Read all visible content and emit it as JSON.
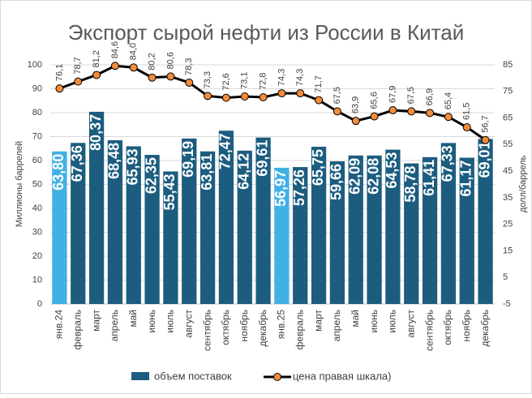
{
  "chart_data": {
    "type": "bar_line",
    "title": "Экспорт сырой нефти из России в Китай",
    "y_label": "Миллионы баррелей",
    "y2_label": "долл/баррель",
    "categories": [
      "янв.24",
      "февраль",
      "март",
      "апрель",
      "май",
      "июнь",
      "июль",
      "август",
      "сентябрь",
      "октябрь",
      "ноябрь",
      "декабрь",
      "янв.25",
      "февраль",
      "март",
      "апрель",
      "май",
      "июнь",
      "июль",
      "август",
      "сентябрь",
      "октябрь",
      "ноябрь",
      "декабрь"
    ],
    "ylim": [
      0,
      100
    ],
    "yticks": [
      0,
      10,
      20,
      30,
      40,
      50,
      60,
      70,
      80,
      90,
      100
    ],
    "y2lim": [
      -5,
      85
    ],
    "y2ticks": [
      -5,
      5,
      15,
      25,
      35,
      45,
      55,
      65,
      75,
      85
    ],
    "grid": true,
    "series": [
      {
        "name": "объем поставок",
        "type": "bar",
        "color": "#1c5d7f",
        "colors": [
          "#41b0e4",
          "#1c5d7f",
          "#1c5d7f",
          "#1c5d7f",
          "#1c5d7f",
          "#1c5d7f",
          "#1c5d7f",
          "#1c5d7f",
          "#1c5d7f",
          "#1c5d7f",
          "#1c5d7f",
          "#1c5d7f",
          "#41b0e4",
          "#1c5d7f",
          "#1c5d7f",
          "#1c5d7f",
          "#1c5d7f",
          "#1c5d7f",
          "#1c5d7f",
          "#1c5d7f",
          "#1c5d7f",
          "#1c5d7f",
          "#1c5d7f",
          "#1c5d7f"
        ],
        "values": [
          63.8,
          67.36,
          80.37,
          68.48,
          65.93,
          62.35,
          55.43,
          69.19,
          63.81,
          72.47,
          64.12,
          69.61,
          56.97,
          57.26,
          65.75,
          59.66,
          62.09,
          62.08,
          64.53,
          58.78,
          61.41,
          67.33,
          61.17,
          69.01
        ],
        "value_labels": [
          "63,80",
          "67,36",
          "80,37",
          "68,48",
          "65,93",
          "62,35",
          "55,43",
          "69,19",
          "63,81",
          "72,47",
          "64,12",
          "69,61",
          "56,97",
          "57,26",
          "65,75",
          "59,66",
          "62,09",
          "62,08",
          "64,53",
          "58,78",
          "61,41",
          "67,33",
          "61,17",
          "69,01"
        ]
      },
      {
        "name": "цена правая шкала)",
        "type": "line",
        "axis": "y2",
        "color": "#000000",
        "marker_color": "#f28c3a",
        "values": [
          76.1,
          78.7,
          81.2,
          84.6,
          84.0,
          80.2,
          80.6,
          78.3,
          73.3,
          72.6,
          73.1,
          72.8,
          74.3,
          74.3,
          71.7,
          67.5,
          63.9,
          65.6,
          67.9,
          67.5,
          66.9,
          65.4,
          61.5,
          56.7
        ],
        "value_labels": [
          "76,1",
          "78,7",
          "81,2",
          "84,6",
          "84,0",
          "80,2",
          "80,6",
          "78,3",
          "73,3",
          "72,6",
          "73,1",
          "72,8",
          "74,3",
          "74,3",
          "71,7",
          "67,5",
          "63,9",
          "65,6",
          "67,9",
          "67,5",
          "66,9",
          "65,4",
          "61,5",
          "56,7"
        ]
      }
    ]
  }
}
